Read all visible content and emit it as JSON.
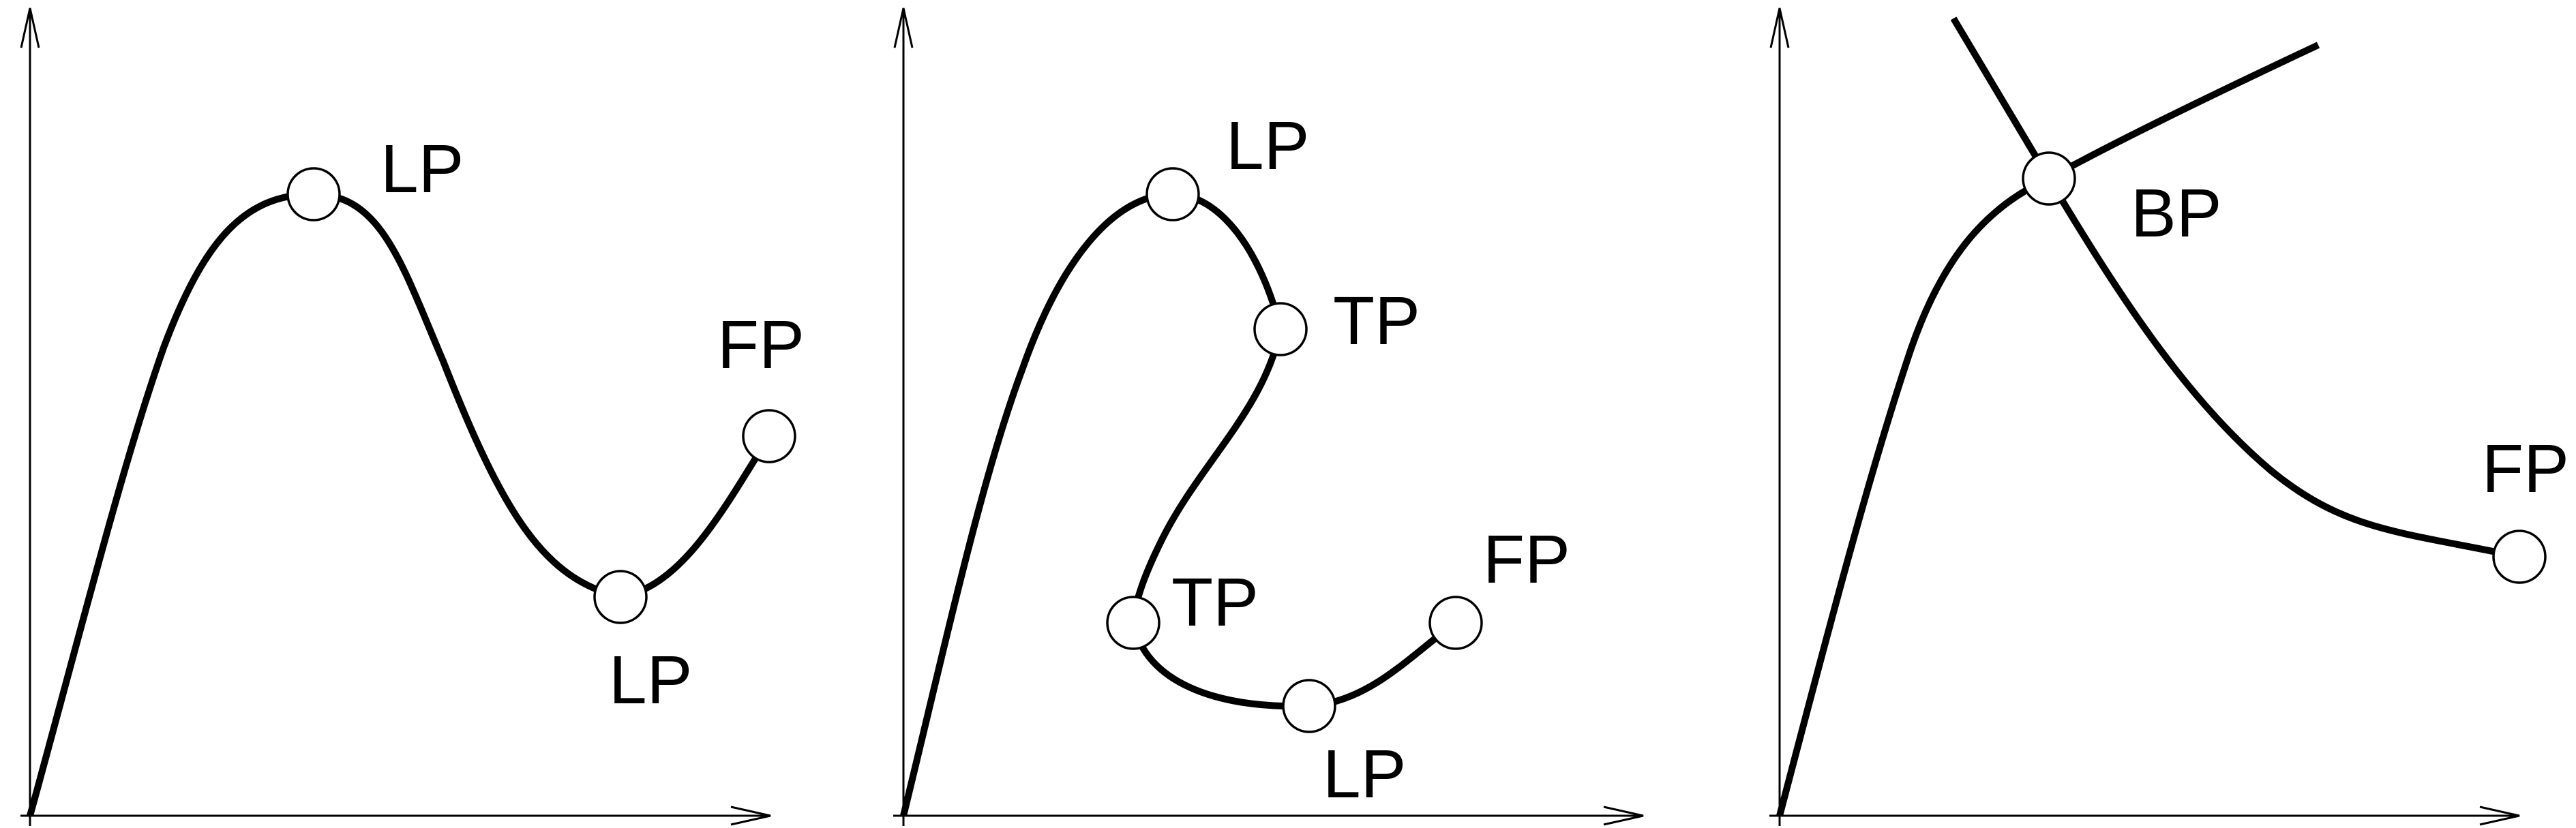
{
  "panels": [
    {
      "points": [
        {
          "label": "LP",
          "type": "limit-point"
        },
        {
          "label": "LP",
          "type": "limit-point"
        },
        {
          "label": "FP",
          "type": "final-point"
        }
      ]
    },
    {
      "points": [
        {
          "label": "LP",
          "type": "limit-point"
        },
        {
          "label": "TP",
          "type": "turning-point"
        },
        {
          "label": "TP",
          "type": "turning-point"
        },
        {
          "label": "LP",
          "type": "limit-point"
        },
        {
          "label": "FP",
          "type": "final-point"
        }
      ]
    },
    {
      "points": [
        {
          "label": "BP",
          "type": "bifurcation-point"
        },
        {
          "label": "FP",
          "type": "final-point"
        }
      ]
    }
  ],
  "colors": {
    "stroke": "#000000",
    "point_fill": "#ffffff",
    "background": "#ffffff"
  }
}
